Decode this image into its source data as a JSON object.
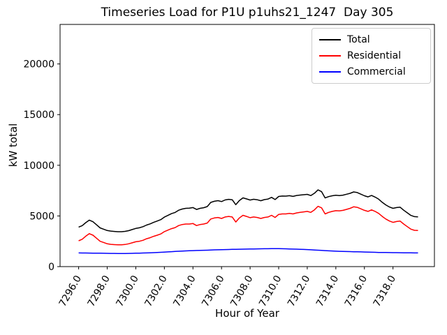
{
  "chart_data": {
    "type": "line",
    "title": "Timeseries Load for P1U p1uhs21_1247  Day 305",
    "xlabel": "Hour of Year",
    "ylabel": "kW total",
    "xlim": [
      7294.7,
      7320.9
    ],
    "ylim": [
      0,
      23900
    ],
    "grid": false,
    "legend_position": "upper right",
    "xticks": [
      7296,
      7298,
      7300,
      7302,
      7304,
      7306,
      7308,
      7310,
      7312,
      7314,
      7316,
      7318
    ],
    "xtick_labels": [
      "7296.0",
      "7298.0",
      "7300.0",
      "7302.0",
      "7304.0",
      "7306.0",
      "7308.0",
      "7310.0",
      "7312.0",
      "7314.0",
      "7316.0",
      "7318.0"
    ],
    "yticks": [
      0,
      5000,
      10000,
      15000,
      20000
    ],
    "ytick_labels": [
      "0",
      "5000",
      "10000",
      "15000",
      "20000"
    ],
    "x": [
      7296.0,
      7296.25,
      7296.5,
      7296.75,
      7297.0,
      7297.25,
      7297.5,
      7297.75,
      7298.0,
      7298.25,
      7298.5,
      7298.75,
      7299.0,
      7299.25,
      7299.5,
      7299.75,
      7300.0,
      7300.25,
      7300.5,
      7300.75,
      7301.0,
      7301.25,
      7301.5,
      7301.75,
      7302.0,
      7302.25,
      7302.5,
      7302.75,
      7303.0,
      7303.25,
      7303.5,
      7303.75,
      7304.0,
      7304.25,
      7304.5,
      7304.75,
      7305.0,
      7305.25,
      7305.5,
      7305.75,
      7306.0,
      7306.25,
      7306.5,
      7306.75,
      7307.0,
      7307.25,
      7307.5,
      7307.75,
      7308.0,
      7308.25,
      7308.5,
      7308.75,
      7309.0,
      7309.25,
      7309.5,
      7309.75,
      7310.0,
      7310.25,
      7310.5,
      7310.75,
      7311.0,
      7311.25,
      7311.5,
      7311.75,
      7312.0,
      7312.25,
      7312.5,
      7312.75,
      7313.0,
      7313.25,
      7313.5,
      7313.75,
      7314.0,
      7314.25,
      7314.5,
      7314.75,
      7315.0,
      7315.25,
      7315.5,
      7315.75,
      7316.0,
      7316.25,
      7316.5,
      7316.75,
      7317.0,
      7317.25,
      7317.5,
      7317.75,
      7318.0,
      7318.25,
      7318.5,
      7318.75,
      7319.0,
      7319.25,
      7319.5,
      7319.75
    ],
    "series": [
      {
        "name": "Total",
        "color": "#000000",
        "values": [
          3900,
          4045,
          4340,
          4585,
          4430,
          4125,
          3820,
          3695,
          3560,
          3505,
          3470,
          3445,
          3445,
          3475,
          3550,
          3660,
          3770,
          3830,
          3940,
          4100,
          4215,
          4370,
          4495,
          4635,
          4885,
          5055,
          5225,
          5345,
          5565,
          5685,
          5750,
          5765,
          5830,
          5640,
          5750,
          5810,
          5920,
          6335,
          6450,
          6510,
          6420,
          6580,
          6640,
          6600,
          6110,
          6515,
          6785,
          6680,
          6570,
          6645,
          6600,
          6505,
          6610,
          6665,
          6830,
          6620,
          6920,
          6965,
          6955,
          6995,
          6930,
          7020,
          7060,
          7095,
          7130,
          7010,
          7240,
          7570,
          7400,
          6780,
          6910,
          6990,
          7040,
          7010,
          7050,
          7140,
          7230,
          7370,
          7310,
          7150,
          6990,
          6880,
          7020,
          6860,
          6650,
          6345,
          6090,
          5885,
          5750,
          5825,
          5860,
          5565,
          5310,
          5055,
          4930,
          4910
        ]
      },
      {
        "name": "Residential",
        "color": "#ff0000",
        "values": [
          2550,
          2700,
          3000,
          3250,
          3100,
          2800,
          2500,
          2380,
          2250,
          2200,
          2170,
          2150,
          2150,
          2180,
          2250,
          2350,
          2450,
          2500,
          2600,
          2750,
          2850,
          2990,
          3100,
          3220,
          3450,
          3600,
          3750,
          3850,
          4050,
          4150,
          4200,
          4200,
          4250,
          4050,
          4150,
          4200,
          4300,
          4700,
          4800,
          4850,
          4750,
          4900,
          4950,
          4900,
          4400,
          4800,
          5060,
          4950,
          4830,
          4900,
          4850,
          4750,
          4850,
          4900,
          5060,
          4850,
          5150,
          5200,
          5200,
          5250,
          5200,
          5300,
          5350,
          5400,
          5450,
          5350,
          5600,
          5950,
          5800,
          5200,
          5350,
          5450,
          5520,
          5500,
          5550,
          5650,
          5750,
          5900,
          5850,
          5700,
          5550,
          5450,
          5600,
          5450,
          5250,
          4950,
          4700,
          4500,
          4370,
          4450,
          4490,
          4200,
          3950,
          3700,
          3580,
          3560
        ]
      },
      {
        "name": "Commercial",
        "color": "#0000ff",
        "values": [
          1350,
          1345,
          1340,
          1335,
          1330,
          1325,
          1320,
          1315,
          1310,
          1305,
          1300,
          1295,
          1295,
          1295,
          1300,
          1310,
          1320,
          1330,
          1340,
          1350,
          1365,
          1380,
          1395,
          1415,
          1435,
          1455,
          1475,
          1495,
          1515,
          1535,
          1550,
          1565,
          1580,
          1590,
          1600,
          1610,
          1620,
          1635,
          1650,
          1660,
          1670,
          1680,
          1690,
          1700,
          1710,
          1715,
          1725,
          1730,
          1740,
          1745,
          1750,
          1755,
          1760,
          1765,
          1770,
          1770,
          1770,
          1765,
          1755,
          1745,
          1730,
          1720,
          1710,
          1695,
          1680,
          1660,
          1640,
          1620,
          1600,
          1580,
          1560,
          1540,
          1520,
          1510,
          1500,
          1490,
          1480,
          1470,
          1460,
          1450,
          1440,
          1430,
          1420,
          1410,
          1400,
          1395,
          1390,
          1385,
          1380,
          1375,
          1370,
          1365,
          1360,
          1355,
          1350,
          1350
        ]
      }
    ]
  }
}
